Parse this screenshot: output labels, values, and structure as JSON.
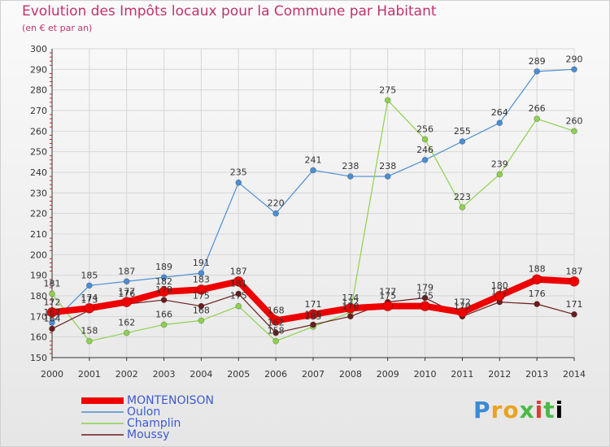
{
  "title": "Evolution des Impôts locaux pour la Commune par Habitant",
  "subtitle": "(en € et par an)",
  "logo_text": "Proxiti",
  "colors": {
    "MONTENOISON": "#ee0000",
    "Oulon": "#4a8ed3",
    "Champlin": "#8dd14f",
    "Moussy": "#6b1c1c"
  },
  "chart_data": {
    "type": "line",
    "title": "Evolution des Impôts locaux pour la Commune par Habitant",
    "xlabel": "",
    "ylabel": "",
    "x": [
      2000,
      2001,
      2002,
      2003,
      2004,
      2005,
      2006,
      2007,
      2008,
      2009,
      2010,
      2011,
      2012,
      2013,
      2014
    ],
    "yticks": [
      150,
      160,
      170,
      180,
      190,
      200,
      210,
      220,
      230,
      240,
      250,
      260,
      270,
      280,
      290,
      300
    ],
    "ylim": [
      150,
      300
    ],
    "grid": true,
    "legend_position": "bottom-left",
    "series": [
      {
        "name": "MONTENOISON",
        "values": [
          172,
          174,
          177,
          182,
          183,
          187,
          168,
          171,
          174,
          175,
          175,
          172,
          180,
          188,
          187
        ],
        "labels": [
          "172",
          "174",
          "177",
          "182",
          "183",
          "187",
          "168",
          "171",
          "174",
          "175",
          "175",
          "172",
          "180",
          "188",
          "187"
        ]
      },
      {
        "name": "Oulon",
        "values": [
          167,
          185,
          187,
          189,
          191,
          235,
          220,
          241,
          238,
          238,
          246,
          255,
          264,
          289,
          290
        ],
        "labels": [
          "167",
          "185",
          "187",
          "189",
          "191",
          "235",
          "220",
          "241",
          "238",
          "238",
          "246",
          "255",
          "264",
          "289",
          "290"
        ]
      },
      {
        "name": "Champlin",
        "values": [
          181,
          158,
          162,
          166,
          168,
          175,
          158,
          165,
          172,
          275,
          256,
          223,
          239,
          266,
          260
        ],
        "labels": [
          "181",
          "158",
          "162",
          "166",
          "168",
          "175",
          "158",
          "165",
          "172",
          "275",
          "256",
          "223",
          "239",
          "266",
          "260"
        ]
      },
      {
        "name": "Moussy",
        "values": [
          164,
          173,
          176,
          178,
          175,
          181,
          162,
          166,
          170,
          177,
          179,
          170,
          177,
          176,
          171
        ],
        "labels": [
          "164",
          "173",
          "176",
          "178",
          "175",
          "181",
          "162",
          "166",
          "170",
          "177",
          "179",
          "170",
          "177",
          "176",
          "171"
        ]
      }
    ]
  }
}
